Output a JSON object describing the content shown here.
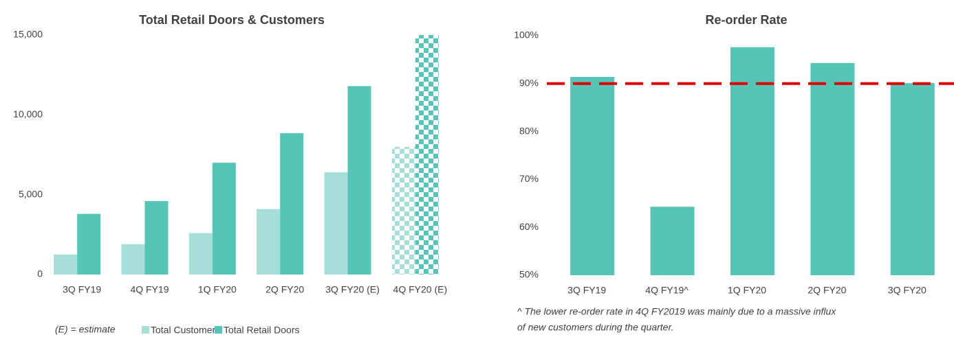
{
  "chart_data": [
    {
      "type": "bar",
      "title": "Total Retail Doors & Customers",
      "categories": [
        "3Q FY19",
        "4Q FY19",
        "1Q FY20",
        "2Q FY20",
        "3Q FY20 (E)",
        "4Q FY20 (E)"
      ],
      "series": [
        {
          "name": "Total Customers",
          "color": "#a6ded8",
          "values": [
            1250,
            1900,
            2600,
            4100,
            6400,
            8000
          ]
        },
        {
          "name": "Total Retail Doors",
          "color": "#56c4b6",
          "values": [
            3800,
            4600,
            7000,
            8850,
            11800,
            15000
          ]
        }
      ],
      "checkered": [
        false,
        false,
        false,
        false,
        false,
        true
      ],
      "ylim": [
        0,
        15000
      ],
      "yticks": [
        0,
        {
          "value": 5000,
          "label": "5,000"
        },
        {
          "value": 10000,
          "label": "10,000"
        },
        {
          "value": 15000,
          "label": "15,000"
        }
      ],
      "grid": false,
      "note": "(E) = estimate",
      "legend": "bottom"
    },
    {
      "type": "bar",
      "title": "Re-order Rate",
      "categories": [
        "3Q FY19",
        "4Q FY19^",
        "1Q FY20",
        "2Q FY20",
        "3Q FY20"
      ],
      "values": [
        91.4,
        64.3,
        97.6,
        94.3,
        90.1
      ],
      "color": "#56c4b6",
      "reference_line": {
        "value": 90,
        "color": "#e00000"
      },
      "ylim": [
        50,
        100
      ],
      "yticks": [
        {
          "value": 50,
          "label": "50%"
        },
        {
          "value": 60,
          "label": "60%"
        },
        {
          "value": 70,
          "label": "70%"
        },
        {
          "value": 80,
          "label": "80%"
        },
        {
          "value": 90,
          "label": "90%"
        },
        {
          "value": 100,
          "label": "100%"
        }
      ],
      "grid": false,
      "footnote": [
        "^ The lower re-order rate in 4Q FY2019 was mainly due to a massive influx",
        "of new customers during the quarter."
      ]
    }
  ]
}
